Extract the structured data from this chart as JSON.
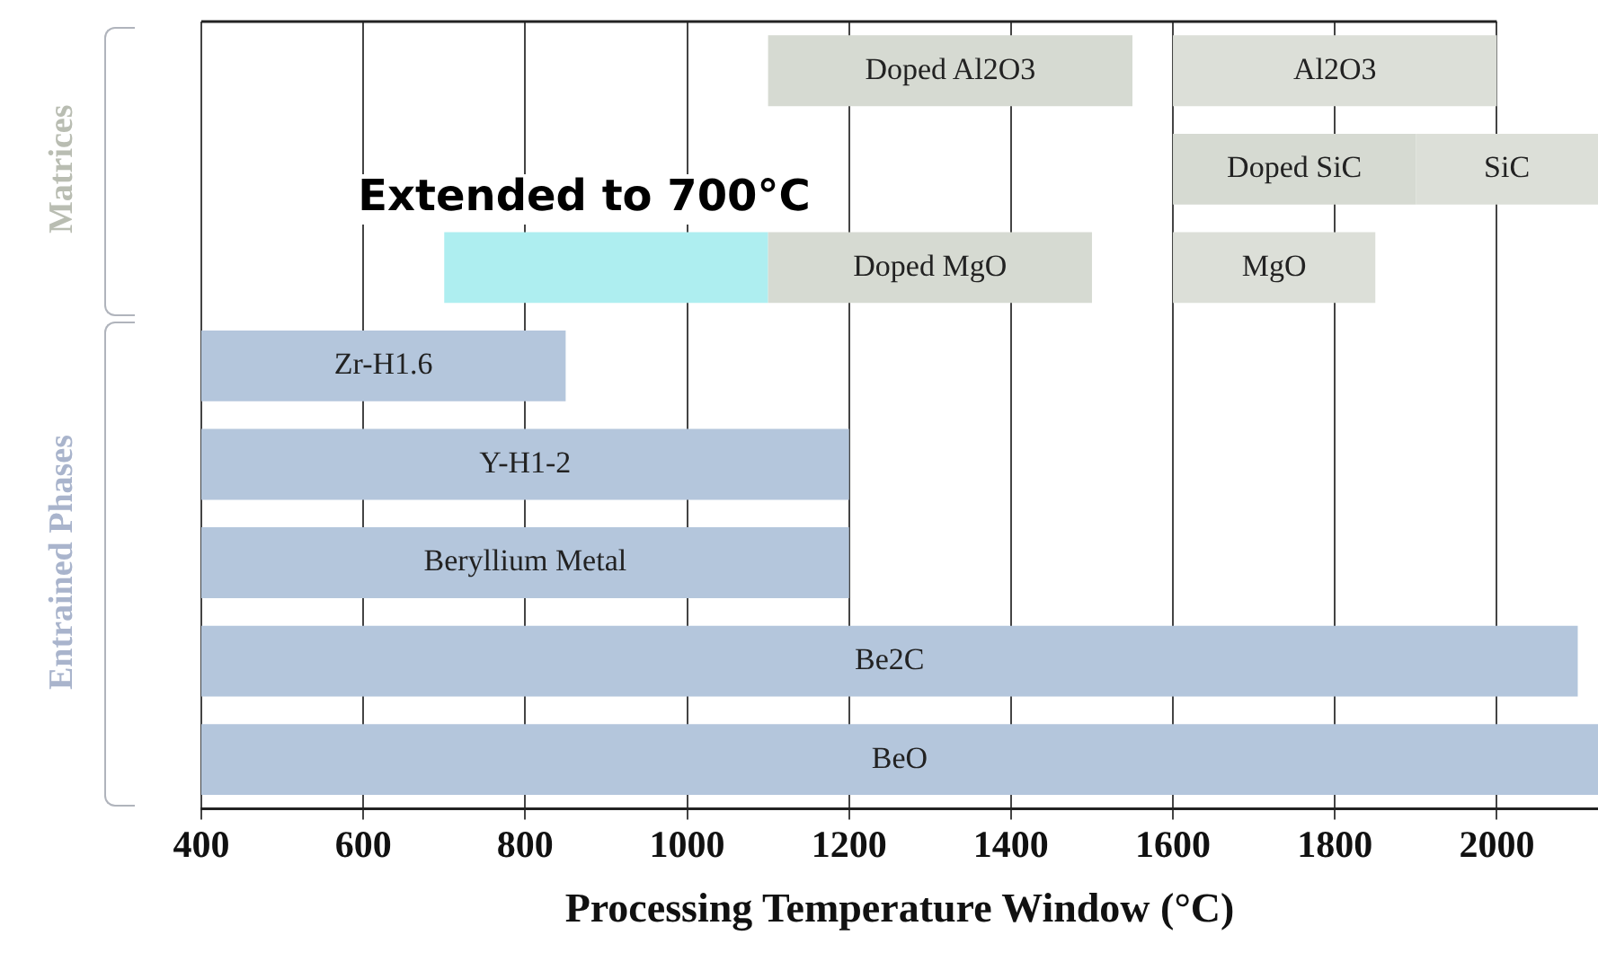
{
  "chart_data": {
    "type": "bar",
    "orientation": "horizontal",
    "xlabel": "Processing Temperature Window (°C)",
    "categories": [
      null,
      null,
      null,
      null,
      null,
      null,
      null,
      null
    ],
    "series": [
      {
        "colors": [
          "#d6dad2",
          "#d6dad2",
          "#d6dad2",
          "#b4c6dc",
          "#b4c6dc",
          "#b4c6dc",
          "#b4c6dc",
          "#b4c6dc"
        ],
        "base": [
          1100,
          1600,
          1100,
          400,
          400,
          400,
          400,
          400
        ],
        "values": [
          450,
          300,
          400,
          450,
          800,
          800,
          1700,
          1725
        ],
        "value_labels": [
          "Doped Al2O3",
          "Doped SiC",
          "Doped MgO",
          "Zr-H1.6",
          "Y-H1-2",
          "Beryllium Metal",
          "Be2C",
          "BeO"
        ]
      },
      {
        "color": "#dcdfd8",
        "base": [
          1600,
          1900,
          1600,
          null,
          null,
          null,
          null,
          null
        ],
        "values": [
          400,
          225,
          250,
          null,
          null,
          null,
          null,
          null
        ],
        "value_labels": [
          "Al2O3",
          "SiC",
          "MgO",
          null,
          null,
          null,
          null,
          null
        ]
      },
      {
        "color": "#aeeef0",
        "base": [
          null,
          null,
          700,
          null,
          null,
          null,
          null,
          null
        ],
        "values": [
          null,
          null,
          400,
          null,
          null,
          null,
          null,
          null
        ]
      }
    ],
    "xlim": [
      400,
      2125
    ],
    "xticks": [
      400,
      600,
      800,
      1000,
      1200,
      1400,
      1600,
      1800,
      2000
    ],
    "grid": "x",
    "tick_labels": "x",
    "legend": false,
    "annotations": [
      "Extended to 700°C",
      "Matrices",
      "Entrained Phases"
    ]
  }
}
